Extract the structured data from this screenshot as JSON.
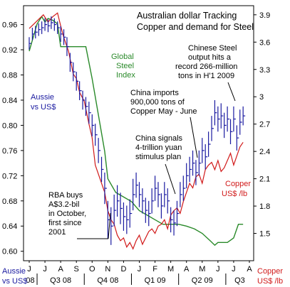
{
  "chart_data": {
    "type": "line",
    "title_lines": [
      "Australian dollar Tracking",
      "Copper and demand for Steel"
    ],
    "months": [
      "J",
      "J",
      "A",
      "S",
      "O",
      "N",
      "D",
      "J",
      "F",
      "M",
      "A",
      "M",
      "J",
      "J",
      "A"
    ],
    "quarters": [
      {
        "label": "08",
        "start": 0,
        "end": 1
      },
      {
        "label": "Q3 08",
        "start": 1,
        "end": 4
      },
      {
        "label": "Q4 08",
        "start": 4,
        "end": 7
      },
      {
        "label": "Q1 09",
        "start": 7,
        "end": 10
      },
      {
        "label": "Q2 09",
        "start": 10,
        "end": 13
      },
      {
        "label": "Q3",
        "start": 13,
        "end": 15
      }
    ],
    "left_axis": {
      "label_lines": [
        "Aussie",
        "vs US$"
      ],
      "ticks": [
        "0.96",
        "0.92",
        "0.88",
        "0.84",
        "0.80",
        "0.76",
        "0.72",
        "0.68",
        "0.64",
        "0.60"
      ],
      "tick_values": [
        0.96,
        0.92,
        0.88,
        0.84,
        0.8,
        0.76,
        0.72,
        0.68,
        0.64,
        0.6
      ],
      "range": [
        0.585,
        0.99
      ]
    },
    "right_axis": {
      "label_lines": [
        "Copper",
        "US$ /lb"
      ],
      "ticks": [
        "3.9",
        "3.6",
        "3.3",
        "3",
        "2.7",
        "2.4",
        "2.1",
        "1.8",
        "1.5"
      ],
      "tick_values": [
        3.9,
        3.6,
        3.3,
        3.0,
        2.7,
        2.4,
        2.1,
        1.8,
        1.5
      ],
      "range": [
        1.2,
        4.0
      ]
    },
    "series": [
      {
        "name": "Aussie vs US$",
        "kind": "hlc",
        "axis": "left",
        "color": "#1a1aa0",
        "label_lines": [
          "Aussie",
          "vs US$"
        ],
        "x": [
          0.0,
          0.2,
          0.4,
          0.6,
          0.8,
          1.0,
          1.2,
          1.4,
          1.6,
          1.8,
          2.0,
          2.2,
          2.4,
          2.6,
          2.8,
          3.0,
          3.2,
          3.4,
          3.6,
          3.8,
          4.0,
          4.2,
          4.4,
          4.6,
          4.8,
          5.0,
          5.2,
          5.4,
          5.6,
          5.8,
          6.0,
          6.2,
          6.4,
          6.6,
          6.8,
          7.0,
          7.2,
          7.4,
          7.6,
          7.8,
          8.0,
          8.2,
          8.4,
          8.6,
          8.8,
          9.0,
          9.2,
          9.4,
          9.6,
          9.8,
          10.0,
          10.2,
          10.4,
          10.6,
          10.8,
          11.0,
          11.2,
          11.4,
          11.6,
          11.8,
          12.0,
          12.2,
          12.4,
          12.6,
          12.8,
          13.0,
          13.2,
          13.4,
          13.6
        ],
        "close": [
          0.93,
          0.945,
          0.948,
          0.952,
          0.955,
          0.96,
          0.958,
          0.963,
          0.96,
          0.955,
          0.945,
          0.94,
          0.925,
          0.9,
          0.885,
          0.87,
          0.855,
          0.84,
          0.83,
          0.82,
          0.8,
          0.785,
          0.76,
          0.73,
          0.7,
          0.65,
          0.64,
          0.665,
          0.68,
          0.668,
          0.655,
          0.65,
          0.66,
          0.69,
          0.705,
          0.69,
          0.68,
          0.665,
          0.66,
          0.68,
          0.7,
          0.69,
          0.672,
          0.69,
          0.68,
          0.65,
          0.645,
          0.66,
          0.69,
          0.7,
          0.72,
          0.73,
          0.74,
          0.725,
          0.74,
          0.76,
          0.75,
          0.77,
          0.795,
          0.82,
          0.81,
          0.815,
          0.8,
          0.81,
          0.79,
          0.81,
          0.78,
          0.805,
          0.815
        ],
        "range": [
          0.02,
          0.02,
          0.02,
          0.02,
          0.02,
          0.02,
          0.02,
          0.02,
          0.02,
          0.02,
          0.025,
          0.025,
          0.03,
          0.03,
          0.03,
          0.03,
          0.03,
          0.03,
          0.03,
          0.035,
          0.035,
          0.035,
          0.04,
          0.04,
          0.05,
          0.06,
          0.06,
          0.05,
          0.05,
          0.05,
          0.045,
          0.045,
          0.045,
          0.05,
          0.04,
          0.04,
          0.04,
          0.04,
          0.04,
          0.04,
          0.04,
          0.04,
          0.04,
          0.04,
          0.04,
          0.04,
          0.04,
          0.04,
          0.04,
          0.04,
          0.04,
          0.04,
          0.04,
          0.04,
          0.04,
          0.04,
          0.04,
          0.04,
          0.04,
          0.04,
          0.04,
          0.04,
          0.04,
          0.04,
          0.04,
          0.04,
          0.04,
          0.04,
          0.03
        ]
      },
      {
        "name": "Copper US$ /lb",
        "kind": "line",
        "axis": "right",
        "color": "#d11a1a",
        "label_lines": [
          "Copper",
          "US$ /lb"
        ],
        "x": [
          0.0,
          0.3,
          0.6,
          0.9,
          1.2,
          1.5,
          1.8,
          2.0,
          2.2,
          2.5,
          2.8,
          3.0,
          3.2,
          3.5,
          3.8,
          4.0,
          4.2,
          4.5,
          4.8,
          5.0,
          5.2,
          5.4,
          5.6,
          5.8,
          6.0,
          6.2,
          6.4,
          6.6,
          6.8,
          7.0,
          7.2,
          7.4,
          7.6,
          7.8,
          8.0,
          8.2,
          8.4,
          8.6,
          8.8,
          9.0,
          9.2,
          9.4,
          9.6,
          9.8,
          10.0,
          10.2,
          10.4,
          10.6,
          10.8,
          11.0,
          11.2,
          11.4,
          11.6,
          11.8,
          12.0,
          12.2,
          12.4,
          12.6,
          12.8,
          13.0,
          13.2,
          13.4,
          13.6
        ],
        "y": [
          3.75,
          3.8,
          3.85,
          3.9,
          3.82,
          3.88,
          3.92,
          3.78,
          3.65,
          3.5,
          3.25,
          3.2,
          3.05,
          2.95,
          2.7,
          2.55,
          2.25,
          2.1,
          1.95,
          1.75,
          1.65,
          1.6,
          1.48,
          1.42,
          1.45,
          1.35,
          1.4,
          1.33,
          1.42,
          1.48,
          1.38,
          1.45,
          1.52,
          1.55,
          1.5,
          1.58,
          1.6,
          1.65,
          1.55,
          1.7,
          1.75,
          1.78,
          1.72,
          1.85,
          1.95,
          2.05,
          2.0,
          2.12,
          2.15,
          2.05,
          2.2,
          2.25,
          2.28,
          2.2,
          2.3,
          2.18,
          2.22,
          2.3,
          2.38,
          2.25,
          2.35,
          2.45,
          2.5
        ]
      },
      {
        "name": "Global Steel Index",
        "kind": "line",
        "axis": "right",
        "color": "#2a8a2a",
        "label_lines": [
          "Global",
          "Steel",
          "Index"
        ],
        "x": [
          0.0,
          0.2,
          0.5,
          0.8,
          1.0,
          1.2,
          1.5,
          1.8,
          2.0,
          2.2,
          2.5,
          2.8,
          3.2,
          3.6,
          4.0,
          4.4,
          4.8,
          5.0,
          5.5,
          6.0,
          6.5,
          7.0,
          7.5,
          8.0,
          8.5,
          9.0,
          9.5,
          10.0,
          10.5,
          11.0,
          11.5,
          11.8,
          12.0,
          12.3,
          12.6,
          13.0,
          13.3,
          13.6
        ],
        "y": [
          3.5,
          3.62,
          3.8,
          3.88,
          3.82,
          3.86,
          3.84,
          3.8,
          3.55,
          3.55,
          3.55,
          3.55,
          3.55,
          3.55,
          3.2,
          2.8,
          2.4,
          2.1,
          1.95,
          1.9,
          1.85,
          1.75,
          1.7,
          1.65,
          1.6,
          1.6,
          1.6,
          1.58,
          1.55,
          1.5,
          1.42,
          1.37,
          1.4,
          1.4,
          1.4,
          1.45,
          1.6,
          1.6
        ]
      }
    ],
    "annotations": [
      {
        "lines": [
          "Chinese Steel",
          "output hits a",
          "record 266-million",
          "tons in H'1 2009"
        ]
      },
      {
        "lines": [
          "China imports",
          "900,000 tons of",
          "Copper May - June"
        ]
      },
      {
        "lines": [
          "China signals",
          "4-trillion yuan",
          "stimulus plan"
        ]
      },
      {
        "lines": [
          "RBA buys",
          "A$3.2-bil",
          "in October,",
          "first since",
          "2001"
        ]
      }
    ]
  }
}
